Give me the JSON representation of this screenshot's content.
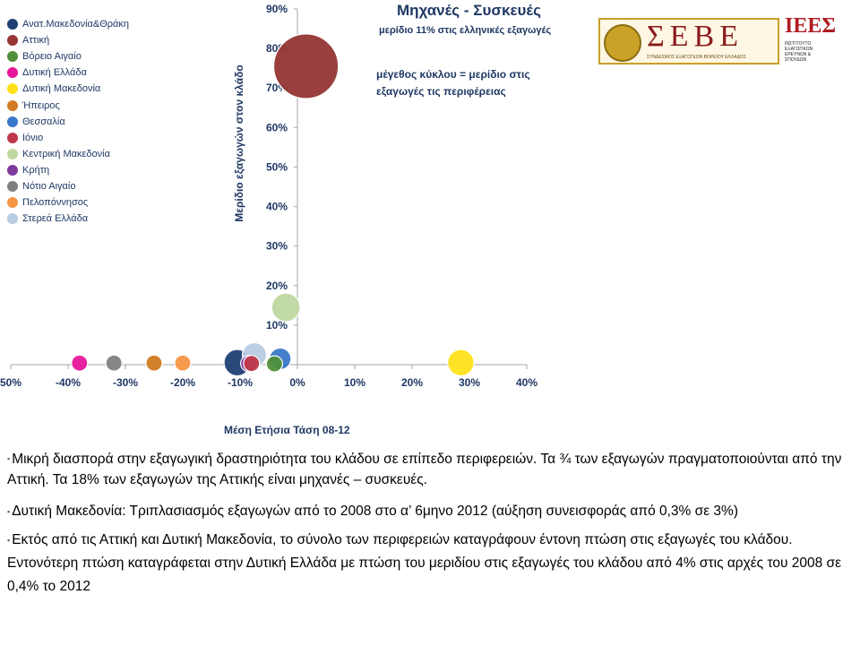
{
  "chart_data": {
    "type": "bubble",
    "title": "Μηχανές - Συσκευές",
    "subtitle": "μερίδιο 11% στις ελληνικές εξαγωγές",
    "size_note": "μέγεθος κύκλου = μερίδιο στις εξαγωγές τις περιφέρειας",
    "xlabel": "Μέση Ετήσια Τάση 08-12",
    "ylabel": "Μερίδιο εξαγωγών στον κλάδο",
    "xlim": [
      -50,
      40
    ],
    "ylim": [
      0,
      90
    ],
    "x_ticks": [
      "50%",
      "-40%",
      "-30%",
      "-20%",
      "-10%",
      "0%",
      "10%",
      "20%",
      "30%",
      "40%"
    ],
    "y_ticks": [
      "0%",
      "10%",
      "20%",
      "30%",
      "40%",
      "50%",
      "60%",
      "70%",
      "80%",
      "90%"
    ],
    "legend_position": "left",
    "series": [
      {
        "name": "Ανατ.Μακεδονία&Θράκη",
        "color": "#1f3f74",
        "x": -10.5,
        "y": 0.5,
        "size": 3
      },
      {
        "name": "Αττική",
        "color": "#943634",
        "x": 1.5,
        "y": 75.5,
        "size": 18
      },
      {
        "name": "Βόρειο Αιγαίο",
        "color": "#4f8f3a",
        "x": -4,
        "y": 0.2,
        "size": 0.1
      },
      {
        "name": "Δυτική Ελλάδα",
        "color": "#e6179a",
        "x": -38,
        "y": 0.4,
        "size": 0.6
      },
      {
        "name": "Δυτική Μακεδονία",
        "color": "#ffe11a",
        "x": 28.5,
        "y": 0.5,
        "size": 3
      },
      {
        "name": "Ήπειρος",
        "color": "#d17a22",
        "x": -25,
        "y": 0.4,
        "size": 1
      },
      {
        "name": "Θεσσαλία",
        "color": "#3a78c9",
        "x": -3,
        "y": 1.5,
        "size": 2
      },
      {
        "name": "Ιόνιο",
        "color": "#c0394b",
        "x": -8,
        "y": 0.3,
        "size": 0.1
      },
      {
        "name": "Κεντρική Μακεδονία",
        "color": "#bfd8a0",
        "x": -2,
        "y": 14.5,
        "size": 3.5
      },
      {
        "name": "Κρήτη",
        "color": "#7f3b9c",
        "x": -8.5,
        "y": 0.3,
        "size": 0.3
      },
      {
        "name": "Νότιο Αιγαίο",
        "color": "#7f7f7f",
        "x": -32,
        "y": 0.4,
        "size": 0.3
      },
      {
        "name": "Πελοπόννησος",
        "color": "#f79646",
        "x": -20,
        "y": 0.4,
        "size": 0.7
      },
      {
        "name": "Στερεά Ελλάδα",
        "color": "#b8cce4",
        "x": -7.5,
        "y": 2.5,
        "size": 2.5
      }
    ]
  },
  "logos": {
    "seve_name": "ΣΕΒΕ",
    "seve_tagline": "ΣΥΝΔΕΣΜΟΣ ΕΞΑΓΩΓΕΩΝ ΒΟΡΕΙΟΥ ΕΛΛΑΔΟΣ",
    "iees_mark": "ΙΕΕΣ",
    "iees_text": "ΙΝΣΤΙΤΟΥΤΟ ΕΞΑΓΩΓΙΚΩΝ ΕΡΕΥΝΩΝ & ΣΠΟΥΔΩΝ"
  },
  "bullets": [
    "Μικρή διασπορά στην εξαγωγική δραστηριότητα του κλάδου σε επίπεδο περιφερειών. Τα ¾ των εξαγωγών πραγματοποιούνται από την Αττική. Τα 18% των εξαγωγών της Αττικής είναι μηχανές – συσκευές.",
    "Δυτική Μακεδονία: Τριπλασιασμός εξαγωγών από το 2008 στο α’ 6μηνο 2012 (αύξηση συνεισφοράς από 0,3% σε 3%)",
    "Εκτός από τις Αττική και Δυτική Μακεδονία, το σύνολο των περιφερειών καταγράφουν έντονη πτώση στις εξαγωγές του κλάδου. Εντονότερη πτώση καταγράφεται στην Δυτική Ελλάδα με πτώση του μεριδίου στις εξαγωγές του κλάδου από 4% στις αρχές του 2008 σε 0,4% το 2012"
  ],
  "bullet_marker": "▪"
}
